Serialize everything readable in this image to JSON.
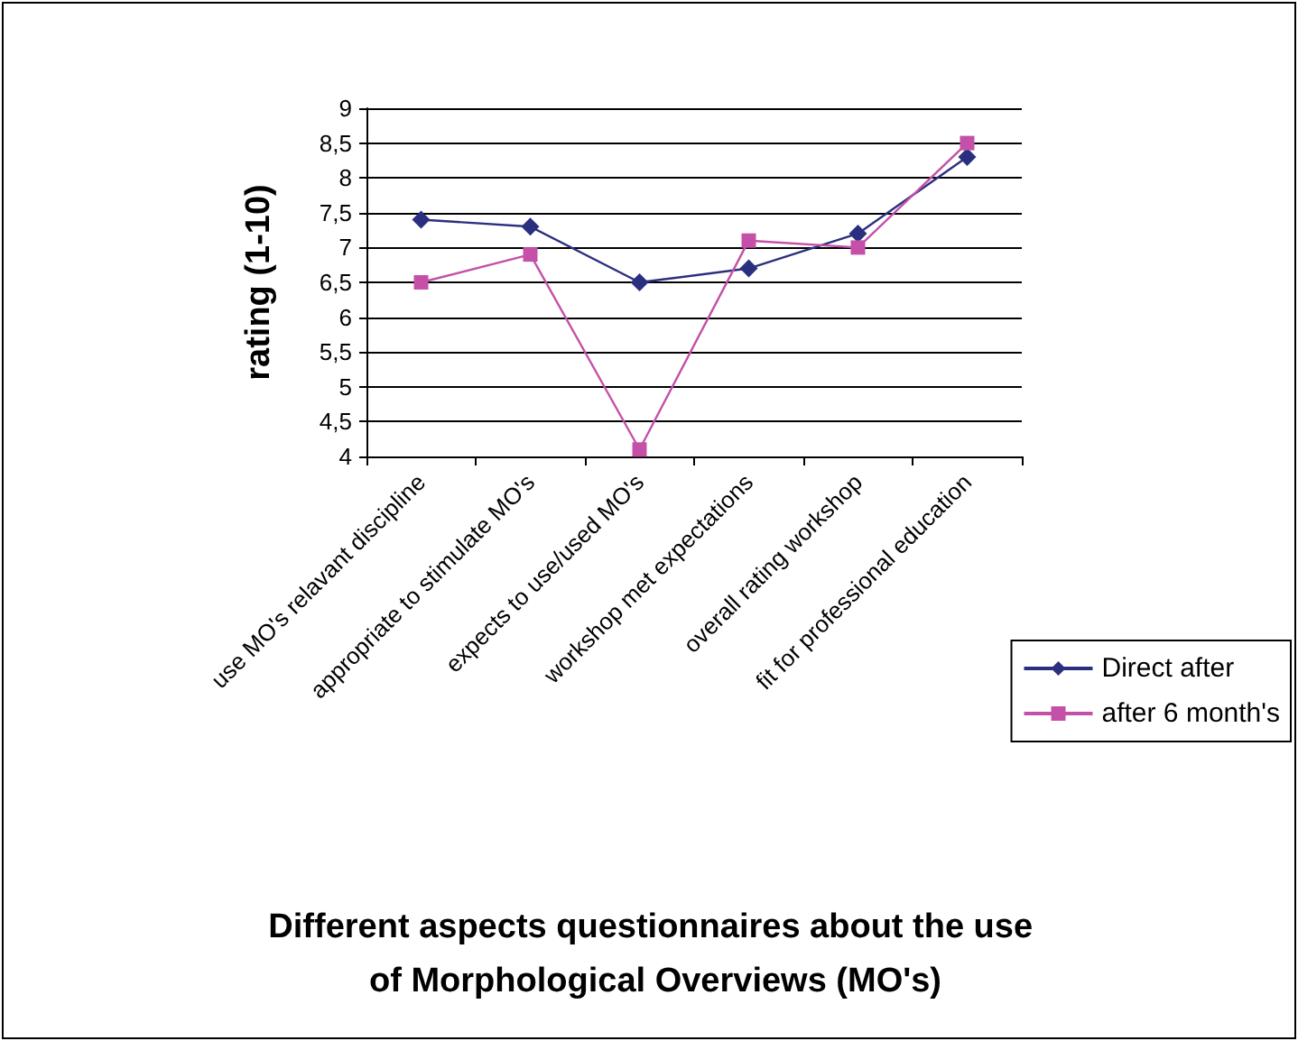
{
  "chart_data": {
    "type": "line",
    "title": "Different aspects questionnaires about the use of Morphological Overviews (MO's)",
    "ylabel": "rating (1-10)",
    "categories": [
      "use MO's relavant discipline",
      "appropriate to stimulate MO's",
      "expects to use/used MO's",
      "workshop met expectations",
      "overall rating workshop",
      "fit for professional education"
    ],
    "series": [
      {
        "name": "Direct after",
        "color": "#2b2f7f",
        "marker": "diamond",
        "values": [
          7.4,
          7.3,
          6.5,
          6.7,
          7.2,
          8.3
        ]
      },
      {
        "name": "after 6 month's",
        "color": "#c450a8",
        "marker": "square",
        "values": [
          6.5,
          6.9,
          4.1,
          7.1,
          7.0,
          8.5
        ]
      }
    ],
    "ylim": [
      4,
      9
    ],
    "yticks": [
      4,
      {
        "value": 4.5,
        "label": "4,5"
      },
      5,
      {
        "value": 5.5,
        "label": "5,5"
      },
      6,
      {
        "value": 6.5,
        "label": "6,5"
      },
      7,
      {
        "value": 7.5,
        "label": "7,5"
      },
      8,
      {
        "value": 8.5,
        "label": "8,5"
      },
      9
    ],
    "grid": "y",
    "legend": "right",
    "line_style": "solid"
  }
}
